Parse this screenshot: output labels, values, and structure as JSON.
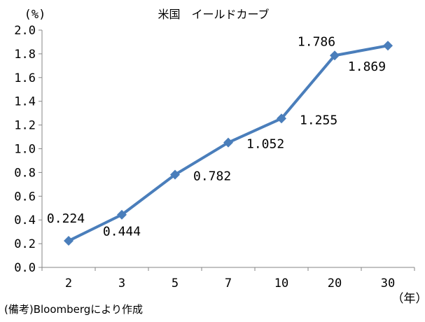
{
  "chart_data": {
    "type": "line",
    "title": "米国　イールドカーブ",
    "ylabel": "(%)",
    "xlabel": "（年）",
    "note": "(備考)Bloombergにより作成",
    "categories": [
      "2",
      "3",
      "5",
      "7",
      "10",
      "20",
      "30"
    ],
    "yticks": [
      "0.0",
      "0.2",
      "0.4",
      "0.6",
      "0.8",
      "1.0",
      "1.2",
      "1.4",
      "1.6",
      "1.8",
      "2.0"
    ],
    "ylim": [
      0,
      2.0
    ],
    "grid": false,
    "series": [
      {
        "values": [
          0.224,
          0.444,
          0.782,
          1.052,
          1.255,
          1.786,
          1.869
        ],
        "labels": [
          "0.224",
          "0.444",
          "0.782",
          "1.052",
          "1.255",
          "1.786",
          "1.869"
        ],
        "color": "#4a7ebb"
      }
    ]
  }
}
